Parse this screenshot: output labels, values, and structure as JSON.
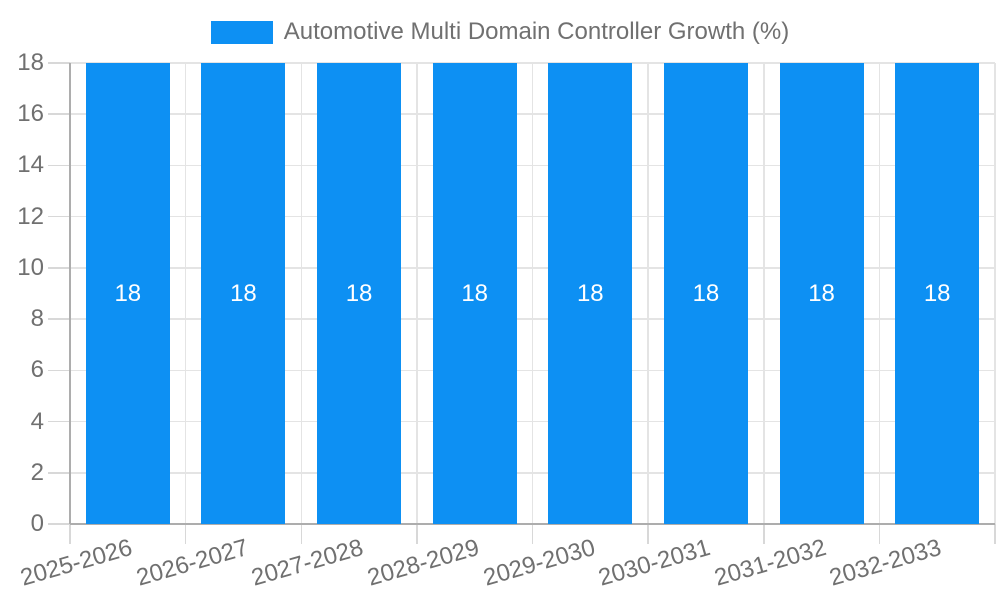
{
  "legend": {
    "label": "Automotive Multi Domain Controller Growth (%)"
  },
  "chart_data": {
    "type": "bar",
    "title": "",
    "categories": [
      "2025-2026",
      "2026-2027",
      "2027-2028",
      "2028-2029",
      "2029-2030",
      "2030-2031",
      "2031-2032",
      "2032-2033"
    ],
    "series": [
      {
        "name": "Automotive Multi Domain Controller Growth (%)",
        "values": [
          18,
          18,
          18,
          18,
          18,
          18,
          18,
          18
        ]
      }
    ],
    "bar_value_labels": [
      "18",
      "18",
      "18",
      "18",
      "18",
      "18",
      "18",
      "18"
    ],
    "xlabel": "",
    "ylabel": "",
    "ylim": [
      0,
      18
    ],
    "yticks": [
      0,
      2,
      4,
      6,
      8,
      10,
      12,
      14,
      16,
      18
    ],
    "grid": true,
    "legend_position": "top",
    "colors": {
      "bar": "#0d90f3",
      "bar_label": "#ffffff",
      "axis_text": "#707070",
      "grid_line": "#e4e4e4",
      "tick_line": "#d8d8d8",
      "axis_line": "#adadad",
      "background": "#ffffff"
    }
  }
}
